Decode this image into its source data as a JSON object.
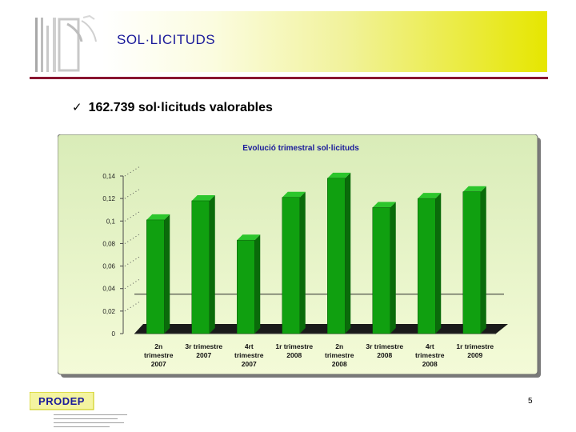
{
  "header": {
    "title": "SOL·LICITUDS"
  },
  "bullet": {
    "icon": "checkmark-icon",
    "check": "✓",
    "text": "162.739 sol·licituds valorables"
  },
  "page_number": "5",
  "logo": {
    "icon": "institution-logo-icon"
  },
  "footer_logo": {
    "icon": "prodep-logo-icon",
    "text": "PRODEP"
  },
  "colors": {
    "header_title": "#1a1a9a",
    "header_rule": "#8a1530",
    "bar_front": "#10a010",
    "bar_side": "#0a6b0a",
    "bar_top": "#2cc62c",
    "chart_bg_top": "#d9ecb8",
    "chart_bg_bottom": "#f4fbd8"
  },
  "chart_data": {
    "type": "bar",
    "title": "Evolució trimestral sol·licituds",
    "categories": [
      [
        "2n",
        "trimestre",
        "2007"
      ],
      [
        "3r trimestre",
        "2007"
      ],
      [
        "4rt",
        "trimestre",
        "2007"
      ],
      [
        "1r trimestre",
        "2008"
      ],
      [
        "2n",
        "trimestre",
        "2008"
      ],
      [
        "3r trimestre",
        "2008"
      ],
      [
        "4rt",
        "trimestre",
        "2008"
      ],
      [
        "1r trimestre",
        "2009"
      ]
    ],
    "values": [
      0.101,
      0.118,
      0.083,
      0.121,
      0.138,
      0.112,
      0.12,
      0.126
    ],
    "yticks": [
      "0",
      "0.02",
      "0.04",
      "0.06",
      "0.08",
      "0.1",
      "0.12",
      "0.14"
    ],
    "ylim": [
      0,
      0.14
    ],
    "xlabel": "",
    "ylabel": "",
    "grid": false,
    "legend": "none",
    "three_d": true
  }
}
